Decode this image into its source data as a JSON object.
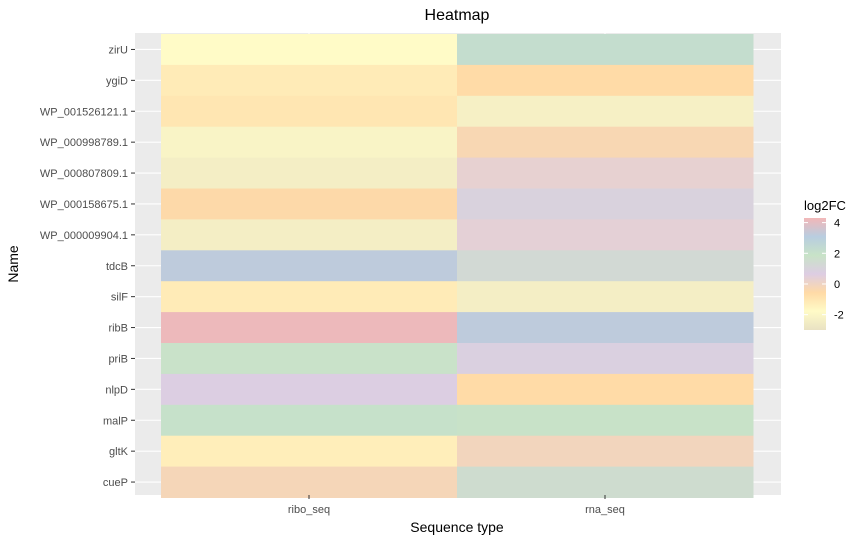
{
  "chart_data": {
    "type": "heatmap",
    "title": "Heatmap",
    "xlabel": "Sequence type",
    "ylabel": "Name",
    "x_categories": [
      "ribo_seq",
      "rna_seq"
    ],
    "y_categories": [
      "zirU",
      "ygiD",
      "WP_001526121.1",
      "WP_000998789.1",
      "WP_000807809.1",
      "WP_000158675.1",
      "WP_000009904.1",
      "tdcB",
      "silF",
      "ribB",
      "priB",
      "nlpD",
      "malP",
      "gltK",
      "cueP"
    ],
    "values": [
      [
        -1.8,
        2.2
      ],
      [
        -1.2,
        -0.6
      ],
      [
        -1.0,
        -2.3
      ],
      [
        -2.1,
        -0.3
      ],
      [
        -2.4,
        0.3
      ],
      [
        -0.5,
        0.9
      ],
      [
        -2.4,
        0.4
      ],
      [
        3.2,
        1.3
      ],
      [
        -1.2,
        -2.4
      ],
      [
        4.2,
        3.2
      ],
      [
        1.8,
        0.8
      ],
      [
        0.7,
        -0.6
      ],
      [
        2.0,
        1.9
      ],
      [
        -1.3,
        -0.1
      ],
      [
        -0.2,
        1.5
      ]
    ],
    "legend": {
      "title": "log2FC",
      "ticks": [
        4,
        2,
        0,
        -2
      ],
      "placement": "right",
      "colors": [
        "#e9e2c3",
        "#fffbc7",
        "#ffdaa6",
        "#ddcde3",
        "#c8e3c7",
        "#b8cde0",
        "#f2b7b8"
      ]
    },
    "panel_background": "#ebebeb",
    "grid": true
  }
}
